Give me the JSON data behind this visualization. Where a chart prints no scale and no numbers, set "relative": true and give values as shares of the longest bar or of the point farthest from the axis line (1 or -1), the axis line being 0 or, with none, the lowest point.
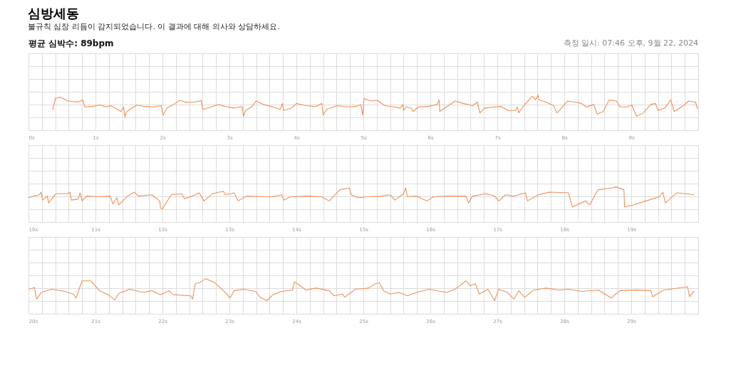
{
  "chart_data": [
    {
      "type": "line",
      "title": "심방세동",
      "subtitle": "불규칙 심장 리듬이 감지되었습니다. 이 결과에 대해 의사와 상담하세요.",
      "annotations": [
        "평균 심박수: 89bpm",
        "측정 일시: 07:46 오후, 9월 22, 2024"
      ],
      "relative": true,
      "grid": true,
      "xlim": [
        0,
        10
      ],
      "xticks": [
        {
          "value": 0,
          "label": "0s"
        },
        {
          "value": 1,
          "label": "1s"
        },
        {
          "value": 2,
          "label": "2s"
        },
        {
          "value": 3,
          "label": "3s"
        },
        {
          "value": 4,
          "label": "4s"
        },
        {
          "value": 5,
          "label": "5s"
        },
        {
          "value": 6,
          "label": "6s"
        },
        {
          "value": 7,
          "label": "7s"
        },
        {
          "value": 8,
          "label": "8s"
        },
        {
          "value": 9,
          "label": "9s"
        }
      ],
      "x": [
        0.36,
        0.4,
        0.47,
        0.59,
        0.74,
        0.81,
        0.84,
        0.95,
        1.06,
        1.16,
        1.23,
        1.38,
        1.42,
        1.44,
        1.46,
        1.55,
        1.62,
        1.73,
        1.87,
        1.98,
        2.01,
        2.07,
        2.19,
        2.26,
        2.37,
        2.48,
        2.58,
        2.6,
        2.73,
        2.83,
        2.94,
        3.08,
        3.19,
        3.21,
        3.24,
        3.33,
        3.4,
        3.51,
        3.65,
        3.76,
        3.79,
        3.81,
        3.93,
        4.0,
        4.15,
        4.29,
        4.38,
        4.4,
        4.45,
        4.61,
        4.75,
        4.89,
        4.96,
        4.99,
        5.01,
        5.11,
        5.21,
        5.32,
        5.46,
        5.55,
        5.59,
        5.6,
        5.64,
        5.71,
        5.74,
        5.82,
        5.96,
        6.1,
        6.13,
        6.14,
        6.24,
        6.37,
        6.49,
        6.63,
        6.7,
        6.74,
        6.81,
        6.95,
        7.06,
        7.16,
        7.27,
        7.3,
        7.32,
        7.38,
        7.52,
        7.57,
        7.61,
        7.62,
        7.73,
        7.84,
        7.89,
        7.94,
        8.05,
        8.16,
        8.26,
        8.33,
        8.44,
        8.49,
        8.58,
        8.67,
        8.78,
        8.83,
        8.94,
        9.01,
        9.04,
        9.08,
        9.18,
        9.29,
        9.36,
        9.4,
        9.5,
        9.59,
        9.64,
        9.75,
        9.86,
        9.96,
        9.99
      ],
      "series": [
        {
          "color": "#f0905a",
          "values": [
            0.32,
            0.84,
            0.91,
            0.73,
            0.68,
            0.78,
            0.46,
            0.48,
            0.55,
            0.46,
            0.52,
            0.25,
            0.46,
            0.0,
            0.23,
            0.41,
            0.55,
            0.48,
            0.46,
            0.52,
            0.09,
            0.41,
            0.62,
            0.76,
            0.66,
            0.68,
            0.75,
            0.35,
            0.46,
            0.57,
            0.48,
            0.41,
            0.48,
            0.03,
            0.3,
            0.46,
            0.73,
            0.57,
            0.46,
            0.35,
            0.62,
            0.3,
            0.41,
            0.62,
            0.52,
            0.48,
            0.62,
            0.09,
            0.35,
            0.52,
            0.46,
            0.48,
            0.57,
            0.09,
            0.84,
            0.73,
            0.76,
            0.52,
            0.46,
            0.41,
            0.57,
            0.3,
            0.46,
            0.41,
            0.25,
            0.46,
            0.48,
            0.57,
            0.78,
            0.25,
            0.46,
            0.73,
            0.62,
            0.52,
            0.68,
            0.19,
            0.41,
            0.46,
            0.48,
            0.3,
            0.3,
            0.46,
            0.19,
            0.46,
            0.95,
            0.78,
            1.0,
            0.78,
            0.68,
            0.52,
            0.19,
            0.35,
            0.73,
            0.68,
            0.62,
            0.46,
            0.57,
            0.14,
            0.25,
            0.78,
            0.73,
            0.46,
            0.46,
            0.55,
            0.3,
            0.03,
            0.19,
            0.57,
            0.62,
            0.3,
            0.41,
            0.78,
            0.25,
            0.46,
            0.73,
            0.68,
            0.35
          ]
        }
      ]
    },
    {
      "type": "line",
      "relative": true,
      "grid": true,
      "xlim": [
        10,
        20
      ],
      "xticks": [
        {
          "value": 10,
          "label": "10s"
        },
        {
          "value": 11,
          "label": "11s"
        },
        {
          "value": 12,
          "label": "12s"
        },
        {
          "value": 13,
          "label": "13s"
        },
        {
          "value": 14,
          "label": "14s"
        },
        {
          "value": 15,
          "label": "15s"
        },
        {
          "value": 16,
          "label": "16s"
        },
        {
          "value": 17,
          "label": "17s"
        },
        {
          "value": 18,
          "label": "18s"
        },
        {
          "value": 19,
          "label": "19s"
        }
      ],
      "x": [
        10.0,
        10.16,
        10.19,
        10.21,
        10.28,
        10.3,
        10.41,
        10.58,
        10.62,
        10.64,
        10.74,
        10.77,
        10.8,
        10.87,
        11.06,
        11.22,
        11.26,
        11.32,
        11.35,
        11.48,
        11.58,
        11.64,
        11.84,
        11.96,
        11.97,
        12.0,
        12.13,
        12.29,
        12.33,
        12.49,
        12.55,
        12.62,
        12.75,
        12.91,
        12.94,
        13.07,
        13.13,
        13.26,
        13.49,
        13.65,
        13.78,
        13.81,
        13.91,
        14.17,
        14.37,
        14.49,
        14.65,
        14.79,
        14.82,
        14.92,
        15.08,
        15.27,
        15.4,
        15.47,
        15.6,
        15.63,
        15.66,
        15.79,
        15.95,
        16.05,
        16.24,
        16.53,
        16.57,
        16.63,
        16.83,
        16.96,
        17.02,
        17.12,
        17.25,
        17.42,
        17.45,
        17.61,
        17.77,
        18.06,
        18.12,
        18.32,
        18.38,
        18.5,
        18.7,
        18.77,
        18.89,
        18.9,
        19.03,
        19.22,
        19.42,
        19.47,
        19.51,
        19.68,
        19.94
      ],
      "series": [
        {
          "color": "#f0905a",
          "values": [
            0.51,
            0.64,
            0.76,
            0.4,
            0.58,
            0.27,
            0.69,
            0.69,
            0.76,
            0.4,
            0.44,
            0.73,
            0.36,
            0.58,
            0.55,
            0.58,
            0.22,
            0.51,
            0.18,
            0.58,
            0.76,
            0.58,
            0.64,
            0.36,
            0.04,
            0.0,
            0.64,
            0.69,
            0.45,
            0.64,
            0.73,
            0.36,
            0.69,
            0.8,
            0.64,
            0.73,
            0.36,
            0.58,
            0.55,
            0.55,
            0.64,
            0.4,
            0.55,
            0.58,
            0.55,
            0.36,
            0.87,
            0.95,
            0.64,
            0.51,
            0.55,
            0.58,
            0.64,
            0.4,
            0.69,
            0.95,
            0.55,
            0.58,
            0.36,
            0.55,
            0.58,
            0.58,
            0.27,
            0.58,
            0.69,
            0.58,
            0.36,
            0.64,
            0.58,
            0.73,
            0.36,
            0.64,
            0.76,
            0.73,
            0.09,
            0.36,
            0.18,
            0.87,
            0.95,
            1.0,
            0.87,
            0.09,
            0.18,
            0.36,
            0.55,
            0.76,
            0.27,
            0.73,
            0.64
          ]
        }
      ]
    },
    {
      "type": "line",
      "relative": true,
      "grid": true,
      "xlim": [
        20,
        30
      ],
      "xticks": [
        {
          "value": 20,
          "label": "20s"
        },
        {
          "value": 21,
          "label": "21s"
        },
        {
          "value": 22,
          "label": "22s"
        },
        {
          "value": 23,
          "label": "23s"
        },
        {
          "value": 24,
          "label": "24s"
        },
        {
          "value": 25,
          "label": "25s"
        },
        {
          "value": 26,
          "label": "26s"
        },
        {
          "value": 27,
          "label": "27s"
        },
        {
          "value": 28,
          "label": "28s"
        },
        {
          "value": 29,
          "label": "29s"
        }
      ],
      "x": [
        20.0,
        20.09,
        20.12,
        20.19,
        20.35,
        20.54,
        20.67,
        20.71,
        20.8,
        20.93,
        21.06,
        21.19,
        21.29,
        21.35,
        21.51,
        21.71,
        21.84,
        21.97,
        22.1,
        22.16,
        22.42,
        22.45,
        22.49,
        22.55,
        22.65,
        22.78,
        22.94,
        23.01,
        23.07,
        23.2,
        23.39,
        23.46,
        23.56,
        23.65,
        23.78,
        23.94,
        23.97,
        24.04,
        24.14,
        24.3,
        24.49,
        24.56,
        24.69,
        24.72,
        24.88,
        25.08,
        25.17,
        25.24,
        25.3,
        25.4,
        25.53,
        25.66,
        25.79,
        25.98,
        26.24,
        26.37,
        26.53,
        26.6,
        26.67,
        26.73,
        26.86,
        26.96,
        27.02,
        27.15,
        27.25,
        27.32,
        27.41,
        27.54,
        27.73,
        27.93,
        28.06,
        28.25,
        28.51,
        28.7,
        28.83,
        29.09,
        29.29,
        29.32,
        29.48,
        29.84,
        29.87,
        29.94
      ],
      "series": [
        {
          "color": "#f0905a",
          "values": [
            0.52,
            0.6,
            0.07,
            0.37,
            0.52,
            0.42,
            0.3,
            0.12,
            0.9,
            0.9,
            0.45,
            0.27,
            0.03,
            0.33,
            0.52,
            0.37,
            0.45,
            0.27,
            0.45,
            0.27,
            0.22,
            0.07,
            0.78,
            0.82,
            1.0,
            0.82,
            0.37,
            0.12,
            0.45,
            0.52,
            0.42,
            0.15,
            0.0,
            0.27,
            0.42,
            0.48,
            0.85,
            0.72,
            0.48,
            0.57,
            0.45,
            0.22,
            0.3,
            0.15,
            0.52,
            0.57,
            0.75,
            0.82,
            0.45,
            0.3,
            0.37,
            0.22,
            0.37,
            0.52,
            0.37,
            0.52,
            0.9,
            0.67,
            0.78,
            0.3,
            0.52,
            0.0,
            0.52,
            0.37,
            0.07,
            0.45,
            0.15,
            0.48,
            0.57,
            0.48,
            0.52,
            0.42,
            0.48,
            0.12,
            0.45,
            0.48,
            0.45,
            0.18,
            0.48,
            0.63,
            0.18,
            0.45
          ]
        }
      ]
    }
  ]
}
